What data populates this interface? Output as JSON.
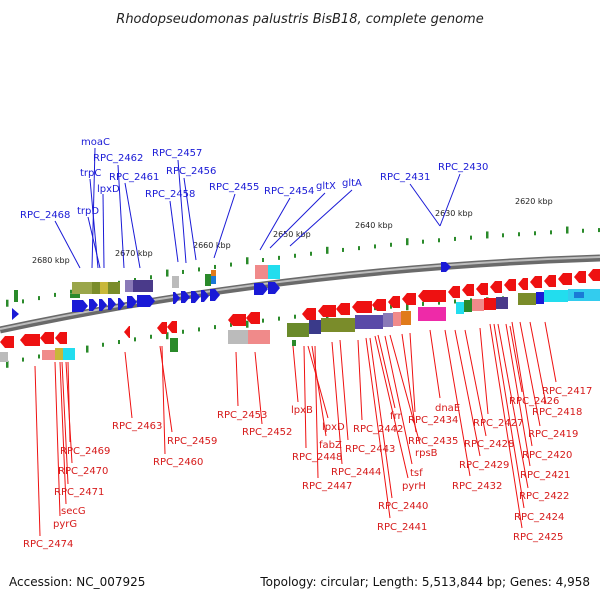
{
  "title": "Rhodopseudomonas palustris BisB18, complete genome",
  "footer": {
    "accession": "Accession: NC_007925",
    "topology": "Topology: circular; Length: 5,513,844 bp; Genes: 4,958"
  },
  "colors": {
    "forward_gene": "#1a1ad6",
    "reverse_gene": "#ee1111",
    "backbone": "#8c8c8c",
    "tick": "#2a8a2a"
  },
  "kbp_labels": [
    "2680 kbp",
    "2670 kbp",
    "2660 kbp",
    "2650 kbp",
    "2640 kbp",
    "2630 kbp",
    "2620 kbp"
  ],
  "top_labels": [
    "moaC",
    "trpC",
    "RPC_2462",
    "lpxD",
    "RPC_2461",
    "trpD",
    "RPC_2468",
    "RPC_2457",
    "RPC_2456",
    "RPC_2458",
    "RPC_2455",
    "RPC_2454",
    "gltX",
    "gltA",
    "RPC_2431",
    "RPC_2430"
  ],
  "bottom_labels": [
    "RPC_2463",
    "RPC_2459",
    "RPC_2460",
    "RPC_2453",
    "RPC_2452",
    "RPC_2469",
    "RPC_2470",
    "RPC_2471",
    "secG",
    "pyrG",
    "RPC_2474",
    "lpxB",
    "lpxD",
    "fabZ",
    "RPC_2448",
    "RPC_2447",
    "RPC_2443",
    "RPC_2444",
    "RPC_2442",
    "frr",
    "rpsB",
    "tsf",
    "pyrH",
    "RPC_2440",
    "RPC_2441",
    "RPC_2434",
    "dnaE",
    "RPC_2435",
    "RPC_2432",
    "RPC_2429",
    "RPC_2428",
    "RPC_2427",
    "RPC_2426",
    "RPC_2417",
    "RPC_2418",
    "RPC_2419",
    "RPC_2420",
    "RPC_2421",
    "RPC_2422",
    "RPC_2424",
    "RPC_2425"
  ]
}
